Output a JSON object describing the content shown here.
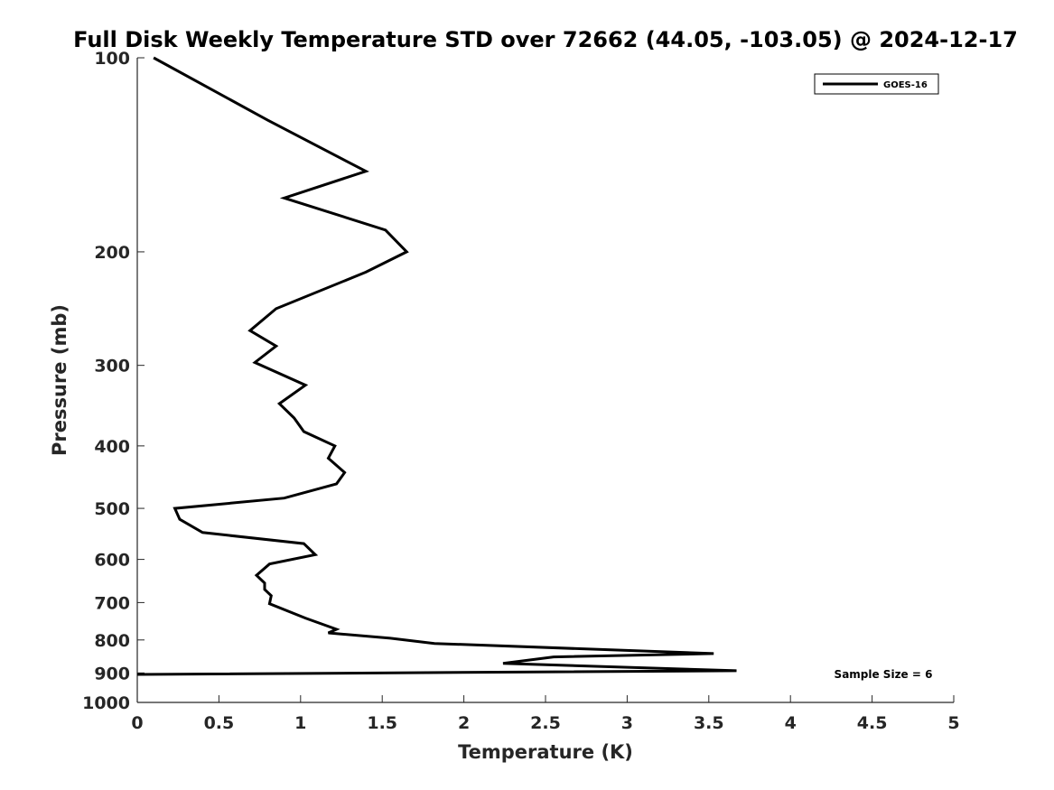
{
  "chart_data": {
    "type": "line",
    "title": "Full Disk Weekly Temperature STD over 72662 (44.05, -103.05) @ 2024-12-17",
    "xlabel": "Temperature (K)",
    "ylabel": "Pressure (mb)",
    "xlim": [
      0,
      5
    ],
    "ylim": [
      100,
      1000
    ],
    "y_scale": "log",
    "y_reversed": true,
    "x_ticks": [
      0,
      0.5,
      1,
      1.5,
      2,
      2.5,
      3,
      3.5,
      4,
      4.5,
      5
    ],
    "x_tick_labels": [
      "0",
      "0.5",
      "1",
      "1.5",
      "2",
      "2.5",
      "3",
      "3.5",
      "4",
      "4.5",
      "5"
    ],
    "y_ticks": [
      100,
      200,
      300,
      400,
      500,
      600,
      700,
      800,
      900,
      1000
    ],
    "y_tick_labels": [
      "100",
      "200",
      "300",
      "400",
      "500",
      "600",
      "700",
      "800",
      "900",
      "1000"
    ],
    "grid": false,
    "legend_position": "top-right",
    "series": [
      {
        "name": "GOES-16",
        "color": "#000000",
        "points": [
          [
            0.1,
            100
          ],
          [
            0.8,
            125
          ],
          [
            1.4,
            150
          ],
          [
            0.9,
            165
          ],
          [
            1.52,
            185
          ],
          [
            1.65,
            200
          ],
          [
            1.4,
            215
          ],
          [
            0.85,
            245
          ],
          [
            0.69,
            265
          ],
          [
            0.85,
            280
          ],
          [
            0.72,
            297
          ],
          [
            1.03,
            322
          ],
          [
            0.87,
            344
          ],
          [
            0.96,
            362
          ],
          [
            1.02,
            380
          ],
          [
            1.21,
            400
          ],
          [
            1.17,
            418
          ],
          [
            1.27,
            440
          ],
          [
            1.22,
            458
          ],
          [
            0.9,
            482
          ],
          [
            0.23,
            500
          ],
          [
            0.26,
            520
          ],
          [
            0.4,
            545
          ],
          [
            1.02,
            567
          ],
          [
            1.09,
            590
          ],
          [
            0.81,
            610
          ],
          [
            0.73,
            635
          ],
          [
            0.78,
            653
          ],
          [
            0.78,
            668
          ],
          [
            0.82,
            683
          ],
          [
            0.81,
            703
          ],
          [
            1.03,
            740
          ],
          [
            1.22,
            770
          ],
          [
            1.17,
            780
          ],
          [
            1.55,
            795
          ],
          [
            1.82,
            810
          ],
          [
            3.53,
            840
          ],
          [
            2.55,
            850
          ],
          [
            2.24,
            870
          ],
          [
            3.67,
            893
          ],
          [
            0.0,
            905
          ]
        ]
      }
    ],
    "annotation": "Sample Size = 6"
  }
}
